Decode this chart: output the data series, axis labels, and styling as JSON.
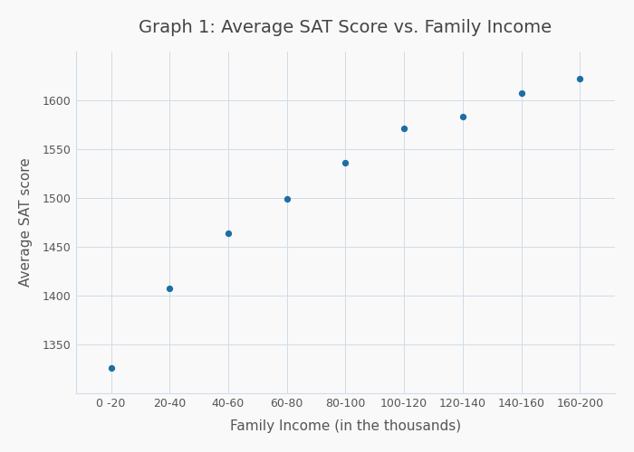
{
  "title": "Graph 1: Average SAT Score vs. Family Income",
  "xlabel": "Family Income (in the thousands)",
  "ylabel": "Average SAT score",
  "x_categories": [
    "0 -20",
    "20-40",
    "40-60",
    "60-80",
    "80-100",
    "100-120",
    "120-140",
    "140-160",
    "160-200"
  ],
  "x_positions": [
    0,
    1,
    2,
    3,
    4,
    5,
    6,
    7,
    8
  ],
  "y_values": [
    1326,
    1407,
    1464,
    1499,
    1536,
    1571,
    1583,
    1607,
    1622
  ],
  "dot_color": "#1c6ea4",
  "dot_size": 18,
  "background_color": "#f9f9f9",
  "grid_color": "#d0dce8",
  "title_fontsize": 14,
  "label_fontsize": 11,
  "tick_fontsize": 9,
  "ylim": [
    1300,
    1650
  ],
  "yticks": [
    1350,
    1400,
    1450,
    1500,
    1550,
    1600
  ]
}
